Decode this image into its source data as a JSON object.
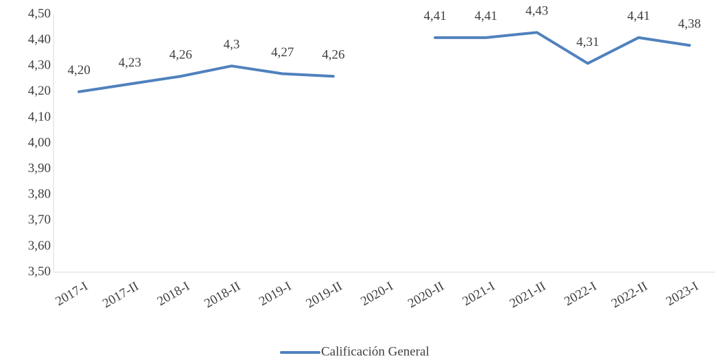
{
  "chart_data": {
    "type": "line",
    "categories": [
      "2017-I",
      "2017-II",
      "2018-I",
      "2018-II",
      "2019-I",
      "2019-II",
      "2020-I",
      "2020-II",
      "2021-I",
      "2021-II",
      "2022-I",
      "2022-II",
      "2023-I"
    ],
    "series": [
      {
        "name": "Calificación General",
        "color": "#4f81bd",
        "values": [
          4.2,
          4.23,
          4.26,
          4.3,
          4.27,
          4.26,
          null,
          4.41,
          4.41,
          4.43,
          4.31,
          4.41,
          4.38
        ],
        "value_labels": [
          "4,20",
          "4,23",
          "4,26",
          "4,3",
          "4,27",
          "4,26",
          null,
          "4,41",
          "4,41",
          "4,43",
          "4,31",
          "4,41",
          "4,38"
        ]
      }
    ],
    "ylim": [
      3.5,
      4.5
    ],
    "yticks": [
      {
        "value": 3.5,
        "label": "3,50"
      },
      {
        "value": 3.6,
        "label": "3,60"
      },
      {
        "value": 3.7,
        "label": "3,70"
      },
      {
        "value": 3.8,
        "label": "3,80"
      },
      {
        "value": 3.9,
        "label": "3,90"
      },
      {
        "value": 4.0,
        "label": "4,00"
      },
      {
        "value": 4.1,
        "label": "4,10"
      },
      {
        "value": 4.2,
        "label": "4,20"
      },
      {
        "value": 4.3,
        "label": "4,30"
      },
      {
        "value": 4.4,
        "label": "4,40"
      },
      {
        "value": 4.5,
        "label": "4,50"
      }
    ],
    "grid": false,
    "legend": "bottom"
  }
}
